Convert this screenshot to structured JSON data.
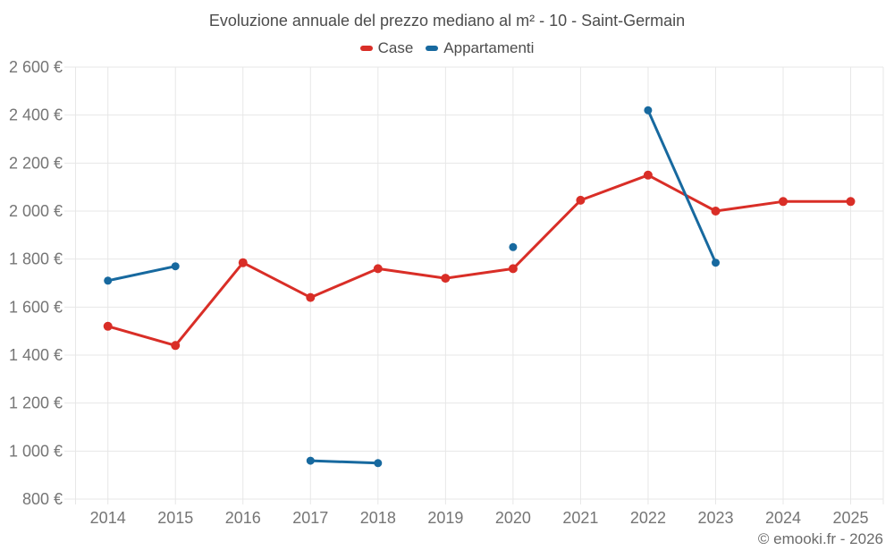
{
  "copyright": "© emooki.fr - 2026",
  "chart_data": {
    "type": "line",
    "title": "Evoluzione annuale del prezzo mediano al m² - 10 - Saint-Germain",
    "x": [
      2014,
      2015,
      2016,
      2017,
      2018,
      2019,
      2020,
      2021,
      2022,
      2023,
      2024,
      2025
    ],
    "series": [
      {
        "name": "Case",
        "color": "#d92e27",
        "marker_radius": 5,
        "values": [
          1520,
          1440,
          1785,
          1640,
          1760,
          1720,
          1760,
          2045,
          2150,
          2000,
          2040,
          2040
        ]
      },
      {
        "name": "Appartamenti",
        "color": "#17699f",
        "marker_radius": 4.5,
        "values": [
          1710,
          1770,
          null,
          960,
          950,
          null,
          1850,
          null,
          2420,
          1785,
          null,
          null
        ]
      }
    ],
    "ylim": [
      800,
      2600
    ],
    "ytick_step": 200,
    "ytick_suffix": " €",
    "xlabel": "",
    "ylabel": "",
    "grid": true,
    "legend_position": "top",
    "background_color": "#ffffff",
    "grid_color": "#e7e7e7",
    "tick_label_color": "#757575",
    "title_color": "#4c4c4c"
  }
}
